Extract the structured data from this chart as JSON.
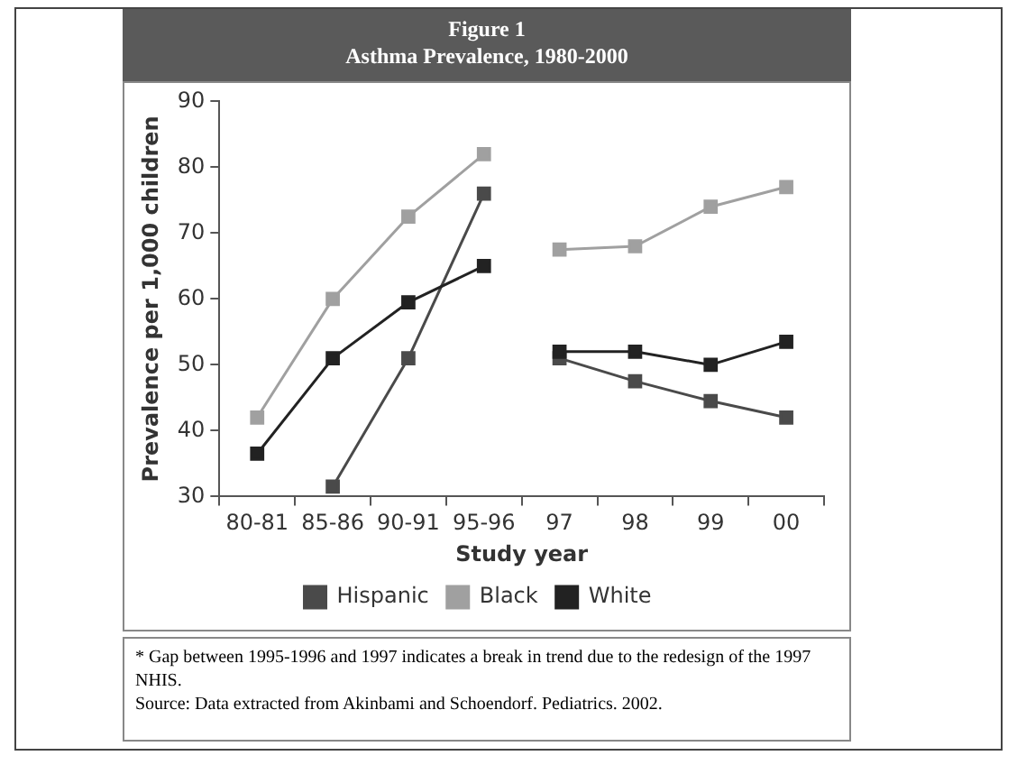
{
  "chart_data": {
    "type": "line",
    "title": "Figure 1\nAsthma Prevalence, 1980-2000",
    "xlabel": "Study year",
    "ylabel": "Prevalence per 1,000 children",
    "categories": [
      "80-81",
      "85-86",
      "90-91",
      "95-96",
      "97",
      "98",
      "99",
      "00"
    ],
    "series": [
      {
        "name": "Hispanic",
        "color": "#4a4a4a",
        "values": [
          null,
          31.5,
          51,
          76,
          null,
          null,
          null,
          null
        ]
      },
      {
        "name": "Black",
        "color": "#a0a0a0",
        "values": [
          42,
          60,
          72.5,
          82,
          null,
          null,
          null,
          null
        ]
      },
      {
        "name": "White",
        "color": "#222222",
        "values": [
          36.5,
          51,
          59.5,
          65,
          null,
          null,
          null,
          null
        ]
      },
      {
        "color": "#4a4a4a",
        "values": [
          null,
          null,
          null,
          null,
          51,
          47.5,
          44.5,
          42
        ]
      },
      {
        "color": "#a0a0a0",
        "values": [
          null,
          null,
          null,
          null,
          67.5,
          68,
          74,
          77
        ]
      },
      {
        "color": "#222222",
        "values": [
          null,
          null,
          null,
          null,
          52,
          52,
          50,
          53.5
        ]
      }
    ],
    "ylim": [
      30,
      90
    ],
    "yticks": [
      30,
      40,
      50,
      60,
      70,
      80,
      90
    ],
    "grid": false,
    "legend": "bottom",
    "marker": "square",
    "line_style": "solid",
    "annotations": [
      "* Gap between 1995-1996 and 1997 indicates a break in trend due to the redesign of the 1997 NHIS.",
      "Source: Data extracted from Akinbami and Schoendorf. Pediatrics. 2002."
    ]
  }
}
